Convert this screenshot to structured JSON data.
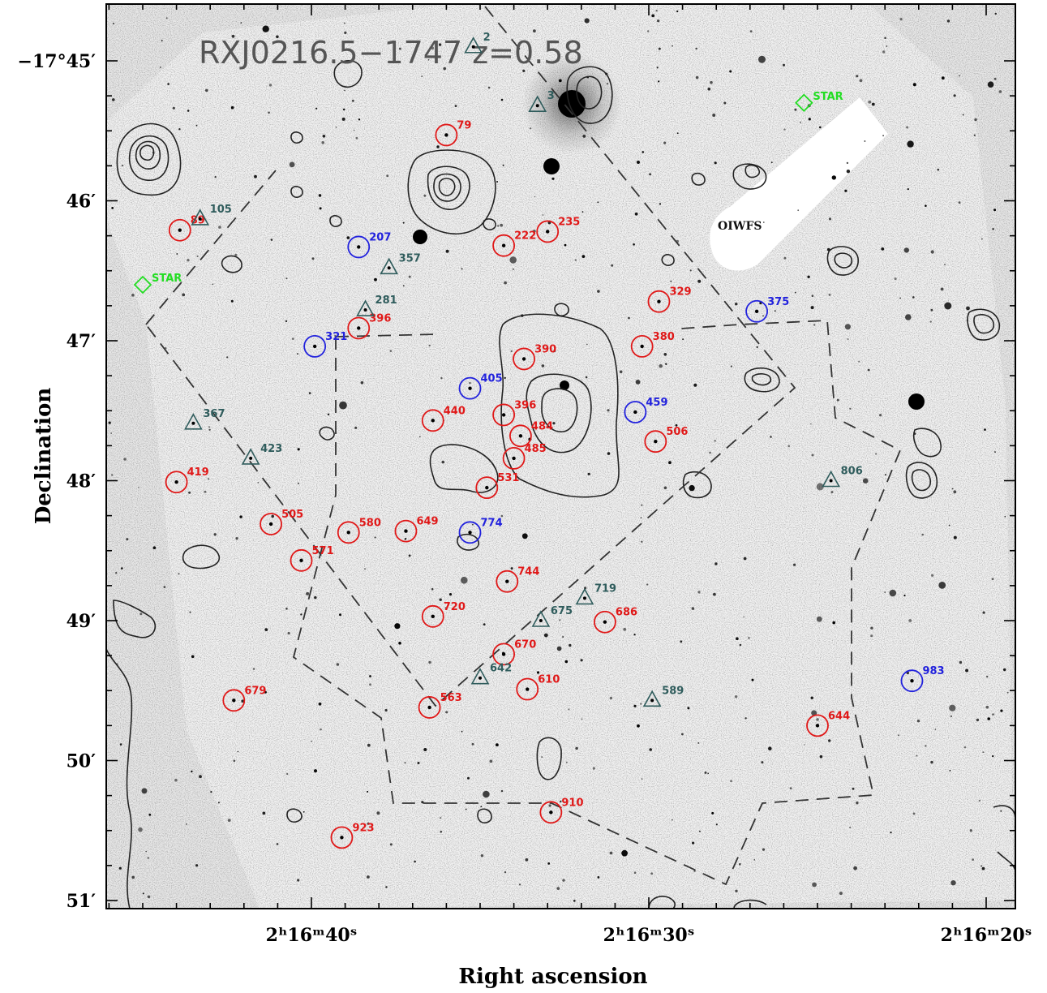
{
  "title": "RXJ0216.5−1747 z=0.58",
  "xlabel": "Right ascension",
  "ylabel": "Declination",
  "oiwfs_label": "OIWFS",
  "colors": {
    "red": "#e01818",
    "blue": "#2222dd",
    "green": "#22dd22",
    "teal": "#2f5c5c",
    "contour": "#222222",
    "dash": "#333333"
  },
  "y_ticks": [
    {
      "label": "−17°45′",
      "dec_min": 45
    },
    {
      "label": "46′",
      "dec_min": 46
    },
    {
      "label": "47′",
      "dec_min": 47
    },
    {
      "label": "48′",
      "dec_min": 48
    },
    {
      "label": "49′",
      "dec_min": 49
    },
    {
      "label": "50′",
      "dec_min": 50
    },
    {
      "label": "51′",
      "dec_min": 51
    }
  ],
  "x_ticks": [
    {
      "label": "2ʰ16ᵐ40ˢ",
      "ra_s": 40
    },
    {
      "label": "2ʰ16ᵐ30ˢ",
      "ra_s": 30
    },
    {
      "label": "2ʰ16ᵐ20ˢ",
      "ra_s": 20
    }
  ],
  "sources_red": [
    {
      "id": "79",
      "ra": 36.0,
      "dec": 45.53
    },
    {
      "id": "89",
      "ra": 43.9,
      "dec": 46.21
    },
    {
      "id": "235",
      "ra": 33.0,
      "dec": 46.22
    },
    {
      "id": "222",
      "ra": 34.3,
      "dec": 46.32
    },
    {
      "id": "329",
      "ra": 29.7,
      "dec": 46.72
    },
    {
      "id": "396",
      "ra": 38.6,
      "dec": 46.91
    },
    {
      "id": "380",
      "ra": 30.2,
      "dec": 47.04
    },
    {
      "id": "390",
      "ra": 33.7,
      "dec": 47.13
    },
    {
      "id": "440",
      "ra": 36.4,
      "dec": 47.57
    },
    {
      "id": "396",
      "ra": 34.3,
      "dec": 47.53
    },
    {
      "id": "484",
      "ra": 33.8,
      "dec": 47.68
    },
    {
      "id": "506",
      "ra": 29.8,
      "dec": 47.72
    },
    {
      "id": "485",
      "ra": 34.0,
      "dec": 47.84
    },
    {
      "id": "419",
      "ra": 44.0,
      "dec": 48.01
    },
    {
      "id": "531",
      "ra": 34.8,
      "dec": 48.05
    },
    {
      "id": "505",
      "ra": 41.2,
      "dec": 48.31
    },
    {
      "id": "580",
      "ra": 38.9,
      "dec": 48.37
    },
    {
      "id": "649",
      "ra": 37.2,
      "dec": 48.36
    },
    {
      "id": "571",
      "ra": 40.3,
      "dec": 48.57
    },
    {
      "id": "744",
      "ra": 34.2,
      "dec": 48.72
    },
    {
      "id": "720",
      "ra": 36.4,
      "dec": 48.97
    },
    {
      "id": "686",
      "ra": 31.3,
      "dec": 49.01
    },
    {
      "id": "670",
      "ra": 34.3,
      "dec": 49.24
    },
    {
      "id": "610",
      "ra": 33.6,
      "dec": 49.49
    },
    {
      "id": "563",
      "ra": 36.5,
      "dec": 49.62
    },
    {
      "id": "679",
      "ra": 42.3,
      "dec": 49.57
    },
    {
      "id": "644",
      "ra": 25.0,
      "dec": 49.75
    },
    {
      "id": "910",
      "ra": 32.9,
      "dec": 50.37
    },
    {
      "id": "923",
      "ra": 39.1,
      "dec": 50.55
    }
  ],
  "sources_blue": [
    {
      "id": "207",
      "ra": 38.6,
      "dec": 46.33
    },
    {
      "id": "375",
      "ra": 26.8,
      "dec": 46.79
    },
    {
      "id": "321",
      "ra": 39.9,
      "dec": 47.04
    },
    {
      "id": "405",
      "ra": 35.3,
      "dec": 47.34
    },
    {
      "id": "459",
      "ra": 30.4,
      "dec": 47.51
    },
    {
      "id": "774",
      "ra": 35.3,
      "dec": 48.37
    },
    {
      "id": "983",
      "ra": 22.2,
      "dec": 49.43
    }
  ],
  "sources_teal": [
    {
      "id": "105",
      "ra": 43.3,
      "dec": 46.13
    },
    {
      "id": "357",
      "ra": 37.7,
      "dec": 46.48
    },
    {
      "id": "281",
      "ra": 38.4,
      "dec": 46.78
    },
    {
      "id": "367",
      "ra": 43.5,
      "dec": 47.59
    },
    {
      "id": "423",
      "ra": 41.8,
      "dec": 47.84
    },
    {
      "id": "806",
      "ra": 24.6,
      "dec": 48.0
    },
    {
      "id": "719",
      "ra": 31.9,
      "dec": 48.84
    },
    {
      "id": "675",
      "ra": 33.2,
      "dec": 49.0
    },
    {
      "id": "642",
      "ra": 35.0,
      "dec": 49.41
    },
    {
      "id": "589",
      "ra": 29.9,
      "dec": 49.57
    },
    {
      "id": "2",
      "ra": 35.2,
      "dec": 44.9
    },
    {
      "id": "3",
      "ra": 33.3,
      "dec": 45.32
    }
  ],
  "sources_green": [
    {
      "id": "STAR",
      "ra": 25.4,
      "dec": 45.3
    },
    {
      "id": "STAR",
      "ra": 45.0,
      "dec": 46.6
    }
  ]
}
